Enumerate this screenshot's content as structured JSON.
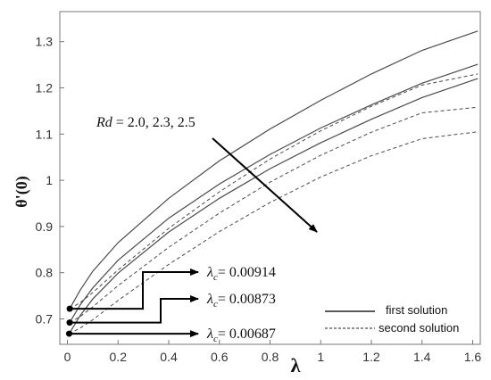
{
  "chart_data": {
    "type": "line",
    "xlabel": "λ",
    "ylabel": "θ'(0)",
    "xlim": [
      -0.03,
      1.63
    ],
    "ylim": [
      0.645,
      1.365
    ],
    "xticks": [
      0,
      0.2,
      0.4,
      0.6,
      0.8,
      1,
      1.2,
      1.4,
      1.6
    ],
    "yticks": [
      0.7,
      0.8,
      0.9,
      1,
      1.1,
      1.2,
      1.3
    ],
    "xtick_labels": [
      "0",
      "0.2",
      "0.4",
      "0.6",
      "0.8",
      "1",
      "1.2",
      "1.4",
      "1.6"
    ],
    "ytick_labels": [
      "0.7",
      "0.8",
      "0.9",
      "1",
      "1.1",
      "1.2",
      "1.3"
    ],
    "grid": false,
    "series": [
      {
        "style": "solid",
        "x": [
          0.00914,
          0.05,
          0.1,
          0.2,
          0.4,
          0.6,
          0.8,
          1.0,
          1.2,
          1.4,
          1.62
        ],
        "y": [
          0.722,
          0.762,
          0.803,
          0.865,
          0.961,
          1.042,
          1.111,
          1.173,
          1.23,
          1.281,
          1.323
        ]
      },
      {
        "style": "solid",
        "x": [
          0.00873,
          0.05,
          0.1,
          0.2,
          0.4,
          0.6,
          0.8,
          1.0,
          1.2,
          1.4,
          1.62
        ],
        "y": [
          0.692,
          0.73,
          0.767,
          0.827,
          0.918,
          0.992,
          1.056,
          1.113,
          1.163,
          1.21,
          1.251
        ]
      },
      {
        "style": "solid",
        "x": [
          0.00687,
          0.05,
          0.1,
          0.2,
          0.4,
          0.6,
          0.8,
          1.0,
          1.2,
          1.4,
          1.62
        ],
        "y": [
          0.668,
          0.707,
          0.743,
          0.799,
          0.888,
          0.961,
          1.025,
          1.081,
          1.132,
          1.179,
          1.22
        ]
      },
      {
        "style": "dashed",
        "x": [
          0.00914,
          0.05,
          0.1,
          0.2,
          0.4,
          0.6,
          0.8,
          1.0,
          1.2,
          1.4,
          1.62
        ],
        "y": [
          0.722,
          0.735,
          0.757,
          0.806,
          0.896,
          0.975,
          1.046,
          1.107,
          1.16,
          1.206,
          1.23
        ]
      },
      {
        "style": "dashed",
        "x": [
          0.00873,
          0.05,
          0.1,
          0.2,
          0.4,
          0.6,
          0.8,
          1.0,
          1.2,
          1.4,
          1.62
        ],
        "y": [
          0.692,
          0.705,
          0.726,
          0.772,
          0.855,
          0.929,
          0.996,
          1.054,
          1.104,
          1.146,
          1.158
        ]
      },
      {
        "style": "dashed",
        "x": [
          0.00687,
          0.05,
          0.1,
          0.2,
          0.4,
          0.6,
          0.8,
          1.0,
          1.2,
          1.4,
          1.62
        ],
        "y": [
          0.668,
          0.68,
          0.698,
          0.74,
          0.818,
          0.889,
          0.952,
          1.007,
          1.053,
          1.09,
          1.105
        ]
      }
    ],
    "legend": {
      "position": "bottom-right",
      "entries": [
        {
          "label": "first solution",
          "style": "solid"
        },
        {
          "label": "second solution",
          "style": "dashed"
        }
      ]
    },
    "annotations": {
      "rd_label": "Rd",
      "rd_values": " = 2.0, 2.3, 2.5",
      "critical": [
        {
          "symbol": "λ",
          "subscript": "c",
          "value": "= 0.00914",
          "lambda": 0.00914,
          "theta": 0.722
        },
        {
          "symbol": "λ",
          "subscript": "c",
          "value": "= 0.00873",
          "lambda": 0.00873,
          "theta": 0.692
        },
        {
          "symbol": "λ",
          "subscript": "c",
          "value": "= 0.00687",
          "lambda": 0.00687,
          "theta": 0.668
        }
      ]
    },
    "colors": {
      "line": "#4a4a4a",
      "axis": "#777777",
      "text": "#111111"
    }
  }
}
